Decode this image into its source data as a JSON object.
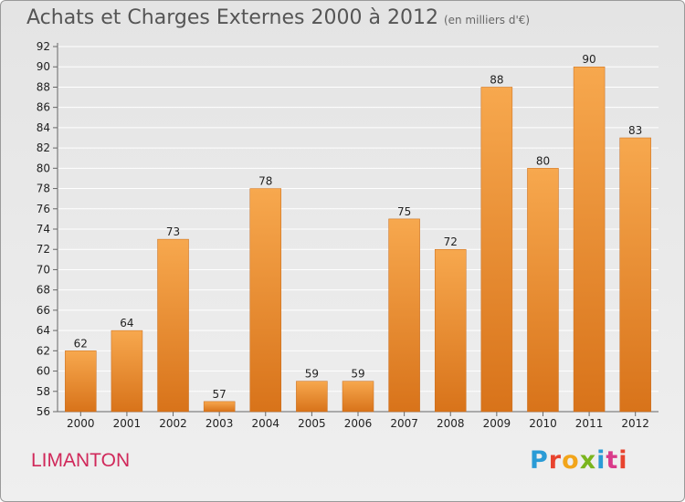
{
  "header": {
    "title": "Achats et Charges Externes 2000 à 2012",
    "subtitle": "(en milliers d'€)"
  },
  "footer": {
    "commune": "LIMANTON",
    "brand": "Proxiti",
    "brand_colors": [
      "#2a9bd6",
      "#e8432e",
      "#f2a51a",
      "#7ab51d",
      "#2a9bd6",
      "#d93a8a",
      "#e8432e"
    ]
  },
  "chart_data": {
    "type": "bar",
    "title": "Achats et Charges Externes 2000 à 2012",
    "subtitle": "(en milliers d'€)",
    "categories": [
      "2000",
      "2001",
      "2002",
      "2003",
      "2004",
      "2005",
      "2006",
      "2007",
      "2008",
      "2009",
      "2010",
      "2011",
      "2012"
    ],
    "values": [
      62,
      64,
      73,
      57,
      78,
      59,
      59,
      75,
      72,
      88,
      80,
      90,
      83
    ],
    "ylim": [
      56,
      92
    ],
    "yticks": [
      56,
      58,
      60,
      62,
      64,
      66,
      68,
      70,
      72,
      74,
      76,
      78,
      80,
      82,
      84,
      86,
      88,
      90,
      92
    ],
    "grid": true,
    "bar_color_top": "#f7a84e",
    "bar_color_bottom": "#d8731a"
  }
}
